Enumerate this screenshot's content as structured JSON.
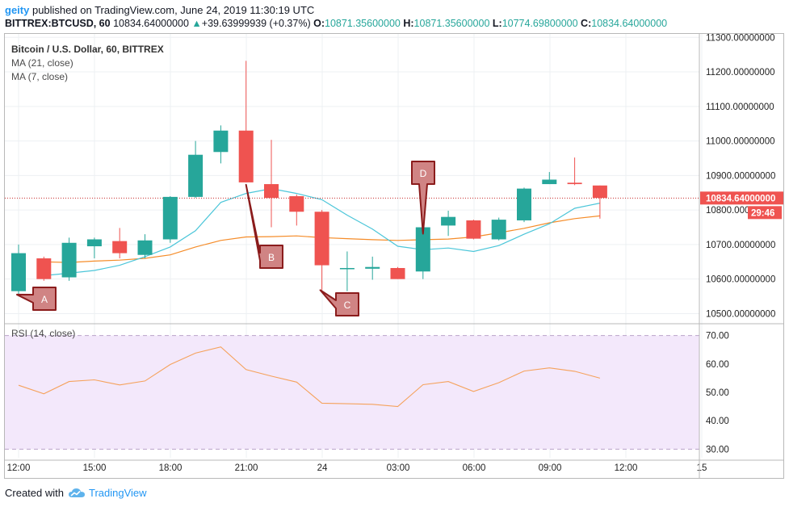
{
  "header": {
    "user": "geity",
    "published_text": "published on TradingView.com, June 24, 2019 11:30:19 UTC",
    "symbol": "BITTREX:BTCUSD, 60",
    "last": "10834.64000000",
    "change": "+39.63999939 (+0.37%)",
    "o_label": "O:",
    "o_value": "10871.35600000",
    "h_label": "H:",
    "h_value": "10871.35600000",
    "l_label": "L:",
    "l_value": "10774.69800000",
    "c_label": "C:",
    "c_value": "10834.64000000"
  },
  "legend": {
    "title": "Bitcoin / U.S. Dollar, 60, BITTREX",
    "ma21": "MA (21, close)",
    "ma7": "MA (7, close)",
    "rsi": "RSI (14, close)"
  },
  "footer": {
    "created_with": "Created with",
    "brand": "TradingView"
  },
  "colors": {
    "up": "#26a69a",
    "down": "#ef5350",
    "ma21": "#f58c29",
    "ma7": "#4cc6d9",
    "rsi_line": "#f5a25c",
    "rsi_band": "#f3e8fb",
    "price_line": "#c62828",
    "callout_fill": "#d08484",
    "callout_stroke": "#8b1c1c"
  },
  "chart_data": {
    "type": "candlestick",
    "title": "Bitcoin / U.S. Dollar, 60, BITTREX",
    "x_tick_labels": [
      "12:00",
      "15:00",
      "18:00",
      "21:00",
      "24",
      "03:00",
      "06:00",
      "09:00",
      "12:00",
      "15"
    ],
    "y_ticks": [
      "11300.00000000",
      "11200.00000000",
      "11100.00000000",
      "11000.00000000",
      "10900.00000000",
      "10800.00000000",
      "10700.00000000",
      "10600.00000000",
      "10500.00000000"
    ],
    "ylim": [
      10480,
      11310
    ],
    "candles": [
      {
        "o": 10565,
        "h": 10700,
        "l": 10555,
        "c": 10675
      },
      {
        "o": 10660,
        "h": 10665,
        "l": 10595,
        "c": 10600
      },
      {
        "o": 10605,
        "h": 10720,
        "l": 10595,
        "c": 10705
      },
      {
        "o": 10695,
        "h": 10720,
        "l": 10660,
        "c": 10715
      },
      {
        "o": 10710,
        "h": 10748,
        "l": 10660,
        "c": 10675
      },
      {
        "o": 10670,
        "h": 10730,
        "l": 10660,
        "c": 10712
      },
      {
        "o": 10715,
        "h": 10840,
        "l": 10705,
        "c": 10838
      },
      {
        "o": 10838,
        "h": 11000,
        "l": 10835,
        "c": 10960
      },
      {
        "o": 10968,
        "h": 11045,
        "l": 10935,
        "c": 11030
      },
      {
        "o": 11030,
        "h": 11232,
        "l": 10880,
        "c": 10880
      },
      {
        "o": 10875,
        "h": 11003,
        "l": 10750,
        "c": 10835
      },
      {
        "o": 10840,
        "h": 10845,
        "l": 10755,
        "c": 10795
      },
      {
        "o": 10795,
        "h": 10800,
        "l": 10568,
        "c": 10640
      },
      {
        "o": 10630,
        "h": 10680,
        "l": 10565,
        "c": 10632
      },
      {
        "o": 10630,
        "h": 10665,
        "l": 10598,
        "c": 10635
      },
      {
        "o": 10632,
        "h": 10635,
        "l": 10600,
        "c": 10600
      },
      {
        "o": 10622,
        "h": 10752,
        "l": 10600,
        "c": 10750
      },
      {
        "o": 10755,
        "h": 10798,
        "l": 10725,
        "c": 10780
      },
      {
        "o": 10770,
        "h": 10772,
        "l": 10715,
        "c": 10717
      },
      {
        "o": 10715,
        "h": 10778,
        "l": 10712,
        "c": 10772
      },
      {
        "o": 10770,
        "h": 10865,
        "l": 10765,
        "c": 10862
      },
      {
        "o": 10875,
        "h": 10910,
        "l": 10875,
        "c": 10888
      },
      {
        "o": 10879,
        "h": 10952,
        "l": 10872,
        "c": 10875
      },
      {
        "o": 10871,
        "h": 10871,
        "l": 10775,
        "c": 10835
      }
    ],
    "ma21": [
      null,
      10650,
      10648,
      10652,
      10655,
      10660,
      10670,
      10693,
      10712,
      10722,
      10723,
      10725,
      10720,
      10717,
      10714,
      10712,
      10714,
      10716,
      10722,
      10734,
      10747,
      10763,
      10775,
      10783
    ],
    "ma7": [
      null,
      10610,
      10617,
      10625,
      10640,
      10665,
      10693,
      10740,
      10822,
      10848,
      10862,
      10848,
      10830,
      10785,
      10745,
      10695,
      10685,
      10690,
      10680,
      10697,
      10730,
      10760,
      10805,
      10820
    ],
    "rsi": {
      "ylim": [
        27,
        73
      ],
      "y_ticks": [
        "70.00",
        "60.00",
        "50.00",
        "40.00",
        "30.00"
      ],
      "band": [
        30,
        70
      ],
      "values": [
        52.5,
        49.5,
        53.8,
        54.4,
        52.6,
        54,
        59.8,
        63.8,
        66,
        58,
        55.7,
        53.6,
        46.2,
        46,
        45.8,
        45,
        52.7,
        53.8,
        50.3,
        53.4,
        57.5,
        58.6,
        57.4,
        55
      ]
    },
    "last_price_label": "10834.64000000",
    "countdown_label": "29:46",
    "annotations": [
      {
        "label": "A",
        "candle": 0
      },
      {
        "label": "B",
        "candle": 9
      },
      {
        "label": "C",
        "candle": 12
      },
      {
        "label": "D",
        "candle": 16
      }
    ]
  }
}
